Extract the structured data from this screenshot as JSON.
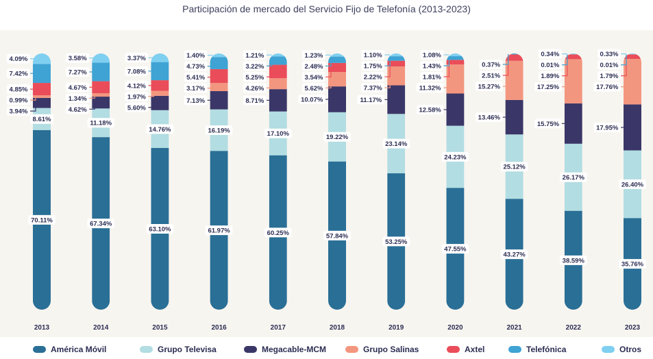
{
  "chart_data": {
    "type": "bar",
    "stacked": true,
    "title": "Participación de mercado del Servicio Fijo de Telefonía (2013-2023)",
    "categories": [
      "2013",
      "2014",
      "2015",
      "2016",
      "2017",
      "2018",
      "2019",
      "2020",
      "2021",
      "2022",
      "2023"
    ],
    "series": [
      {
        "name": "América Móvil",
        "color": "#2a6f96",
        "values": [
          70.11,
          67.34,
          63.1,
          61.97,
          60.25,
          57.84,
          53.25,
          47.55,
          43.27,
          38.59,
          35.76
        ]
      },
      {
        "name": "Grupo Televisa",
        "color": "#b2dde2",
        "values": [
          8.61,
          11.18,
          14.76,
          16.19,
          17.1,
          19.22,
          23.14,
          24.23,
          25.12,
          26.17,
          26.4
        ]
      },
      {
        "name": "Megacable-MCM",
        "color": "#3a3768",
        "values": [
          3.94,
          4.62,
          5.6,
          7.13,
          8.71,
          10.07,
          11.17,
          12.58,
          13.46,
          15.75,
          17.95
        ]
      },
      {
        "name": "Grupo Salinas",
        "color": "#f3967f",
        "values": [
          0.99,
          1.34,
          1.97,
          3.17,
          4.26,
          5.62,
          7.37,
          11.32,
          15.27,
          17.25,
          17.76
        ]
      },
      {
        "name": "Axtel",
        "color": "#ea4d59",
        "values": [
          4.85,
          4.67,
          4.12,
          5.41,
          5.25,
          3.54,
          2.22,
          1.81,
          2.51,
          1.89,
          1.79
        ]
      },
      {
        "name": "Telefónica",
        "color": "#3fa3d4",
        "values": [
          7.42,
          7.27,
          7.08,
          4.73,
          3.22,
          2.48,
          1.75,
          1.43,
          0.37,
          0.01,
          0.01
        ]
      },
      {
        "name": "Otros",
        "color": "#7fcff0",
        "values": [
          4.09,
          3.58,
          3.37,
          1.4,
          1.21,
          1.23,
          1.1,
          1.08,
          0.0,
          0.34,
          0.33
        ]
      }
    ],
    "labels": [
      [
        "70.11%",
        "8.61%",
        "3.94%",
        "0.99%",
        "4.85%",
        "7.42%",
        "4.09%"
      ],
      [
        "67.34%",
        "11.18%",
        "4.62%",
        "1.34%",
        "4.67%",
        "7.27%",
        "3.58%"
      ],
      [
        "63.10%",
        "14.76%",
        "5.60%",
        "1.97%",
        "4.12%",
        "7.08%",
        "3.37%"
      ],
      [
        "61.97%",
        "16.19%",
        "7.13%",
        "3.17%",
        "5.41%",
        "4.73%",
        "1.40%"
      ],
      [
        "60.25%",
        "17.10%",
        "8.71%",
        "4.26%",
        "5.25%",
        "3.22%",
        "1.21%"
      ],
      [
        "57.84%",
        "19.22%",
        "10.07%",
        "5.62%",
        "3.54%",
        "2.48%",
        "1.23%"
      ],
      [
        "53.25%",
        "23.14%",
        "11.17%",
        "7.37%",
        "2.22%",
        "1.75%",
        "1.10%"
      ],
      [
        "47.55%",
        "24.23%",
        "12.58%",
        "11.32%",
        "1.81%",
        "1.43%",
        "1.08%"
      ],
      [
        "43.27%",
        "25.12%",
        "13.46%",
        "15.27%",
        "2.51%",
        "0.37%",
        ""
      ],
      [
        "38.59%",
        "26.17%",
        "15.75%",
        "17.25%",
        "1.89%",
        "0.01%",
        "0.34%"
      ],
      [
        "35.76%",
        "26.40%",
        "17.95%",
        "17.76%",
        "1.79%",
        "0.01%",
        "0.33%"
      ]
    ],
    "ylim": [
      0,
      100
    ],
    "grid": false,
    "legend_position": "bottom"
  }
}
